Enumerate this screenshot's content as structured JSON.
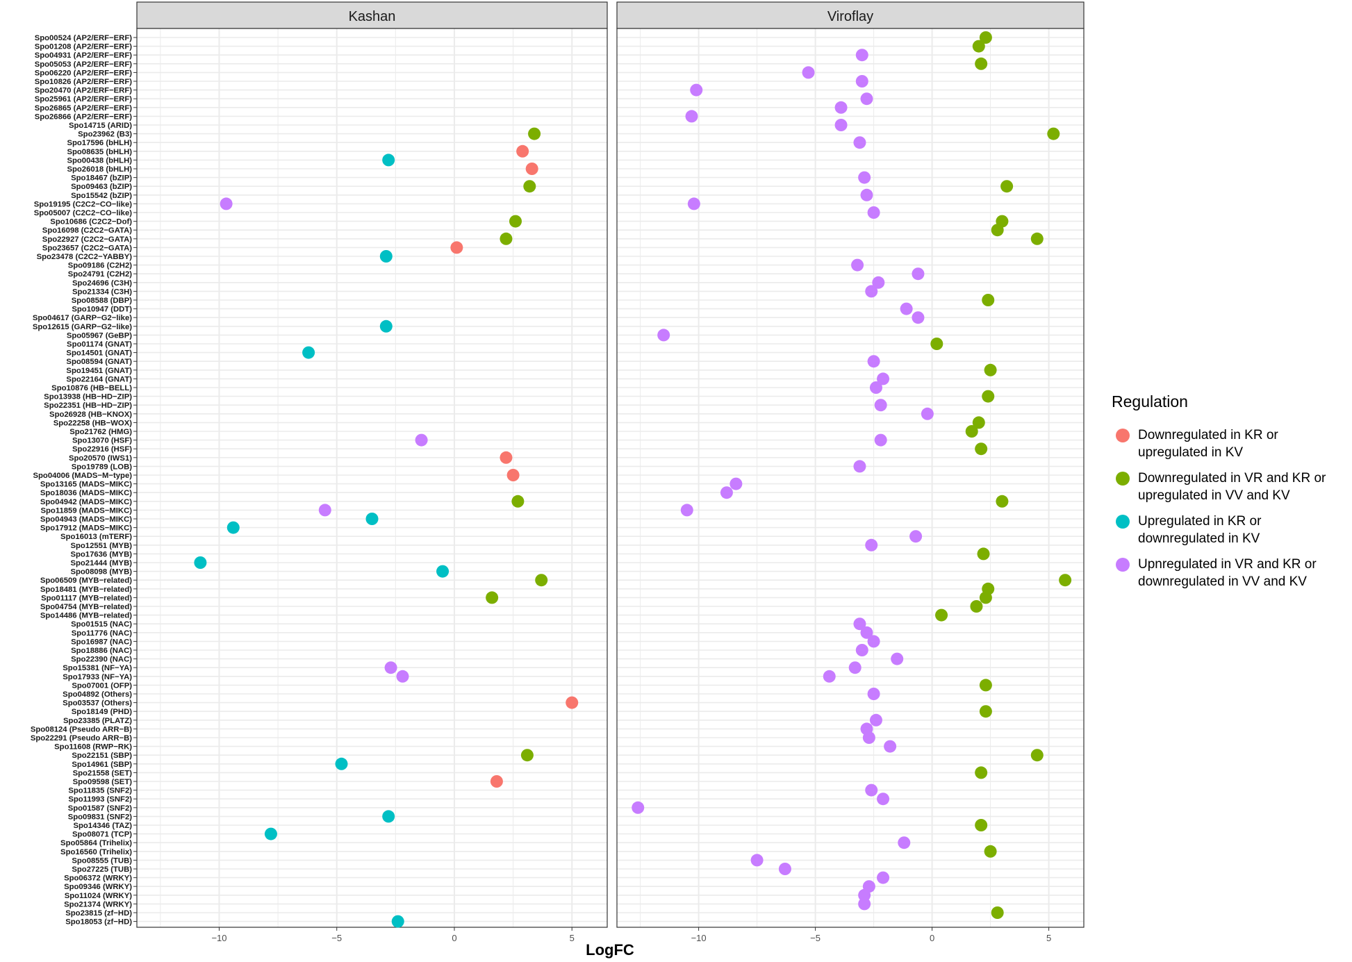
{
  "chart_data": {
    "type": "scatter",
    "xlabel": "LogFC",
    "ylabel": "",
    "xlim": [
      -13.5,
      6.5
    ],
    "xticks": [
      -10,
      -5,
      0,
      5
    ],
    "grid": true,
    "legend_placement": "right",
    "panels": [
      "Kashan",
      "Viroflay"
    ],
    "categories": [
      "Spo00524 (AP2/ERF−ERF)",
      "Spo01208 (AP2/ERF−ERF)",
      "Spo04931 (AP2/ERF−ERF)",
      "Spo05053 (AP2/ERF−ERF)",
      "Spo06220 (AP2/ERF−ERF)",
      "Spo10826 (AP2/ERF−ERF)",
      "Spo20470 (AP2/ERF−ERF)",
      "Spo25961 (AP2/ERF−ERF)",
      "Spo26865 (AP2/ERF−ERF)",
      "Spo26866 (AP2/ERF−ERF)",
      "Spo14715 (ARID)",
      "Spo23962 (B3)",
      "Spo17596 (bHLH)",
      "Spo08635 (bHLH)",
      "Spo00438 (bHLH)",
      "Spo26018 (bHLH)",
      "Spo18467 (bZIP)",
      "Spo09463 (bZIP)",
      "Spo15542 (bZIP)",
      "Spo19195 (C2C2−CO−like)",
      "Spo05007 (C2C2−CO−like)",
      "Spo10686 (C2C2−Dof)",
      "Spo16098 (C2C2−GATA)",
      "Spo22927 (C2C2−GATA)",
      "Spo23657 (C2C2−GATA)",
      "Spo23478 (C2C2−YABBY)",
      "Spo09186 (C2H2)",
      "Spo24791 (C2H2)",
      "Spo24696 (C3H)",
      "Spo21334 (C3H)",
      "Spo08588 (DBP)",
      "Spo10947 (DDT)",
      "Spo04617 (GARP−G2−like)",
      "Spo12615 (GARP−G2−like)",
      "Spo05967 (GeBP)",
      "Spo01174 (GNAT)",
      "Spo14501 (GNAT)",
      "Spo08594 (GNAT)",
      "Spo19451 (GNAT)",
      "Spo22164 (GNAT)",
      "Spo10876 (HB−BELL)",
      "Spo13938 (HB−HD−ZIP)",
      "Spo22351 (HB−HD−ZIP)",
      "Spo26928 (HB−KNOX)",
      "Spo22258 (HB−WOX)",
      "Spo21762 (HMG)",
      "Spo13070 (HSF)",
      "Spo22916 (HSF)",
      "Spo20570 (IWS1)",
      "Spo19789 (LOB)",
      "Spo04006 (MADS−M−type)",
      "Spo13165 (MADS−MIKC)",
      "Spo18036 (MADS−MIKC)",
      "Spo04942 (MADS−MIKC)",
      "Spo11859 (MADS−MIKC)",
      "Spo04943 (MADS−MIKC)",
      "Spo17912 (MADS−MIKC)",
      "Spo16013 (mTERF)",
      "Spo12551 (MYB)",
      "Spo17636 (MYB)",
      "Spo21444 (MYB)",
      "Spo08098 (MYB)",
      "Spo06509 (MYB−related)",
      "Spo18481 (MYB−related)",
      "Spo01117 (MYB−related)",
      "Spo04754 (MYB−related)",
      "Spo14486 (MYB−related)",
      "Spo01515 (NAC)",
      "Spo11776 (NAC)",
      "Spo16987 (NAC)",
      "Spo18886 (NAC)",
      "Spo22390 (NAC)",
      "Spo15381 (NF−YA)",
      "Spo17933 (NF−YA)",
      "Spo07001 (OFP)",
      "Spo04892 (Others)",
      "Spo03537 (Others)",
      "Spo18149 (PHD)",
      "Spo23385 (PLATZ)",
      "Spo08124 (Pseudo ARR−B)",
      "Spo22291 (Pseudo ARR−B)",
      "Spo11608 (RWP−RK)",
      "Spo22151 (SBP)",
      "Spo14961 (SBP)",
      "Spo21558 (SET)",
      "Spo09598 (SET)",
      "Spo11835 (SNF2)",
      "Spo11993 (SNF2)",
      "Spo01587 (SNF2)",
      "Spo09831 (SNF2)",
      "Spo14346 (TAZ)",
      "Spo08071 (TCP)",
      "Spo05864 (Trihelix)",
      "Spo16560 (Trihelix)",
      "Spo08555 (TUB)",
      "Spo27225 (TUB)",
      "Spo06372 (WRKY)",
      "Spo09346 (WRKY)",
      "Spo11024 (WRKY)",
      "Spo21374 (WRKY)",
      "Spo23815 (zf−HD)",
      "Spo18053 (zf−HD)"
    ],
    "series": [
      {
        "name": "Downregulated in KR or upregulated in KV",
        "color": "#F8766D"
      },
      {
        "name": "Downregulated in VR and KR or upregulated in VV and KV",
        "color": "#7CAE00"
      },
      {
        "name": "Upregulated in KR or downregulated in KV",
        "color": "#00BFC4"
      },
      {
        "name": "Upnregulated in VR and KR or downregulated in VV and KV",
        "color": "#C77CFF"
      }
    ],
    "points": [
      {
        "panel": 0,
        "row": 11,
        "x": 3.4,
        "s": 1
      },
      {
        "panel": 0,
        "row": 13,
        "x": 2.9,
        "s": 0
      },
      {
        "panel": 0,
        "row": 14,
        "x": -2.8,
        "s": 2
      },
      {
        "panel": 0,
        "row": 15,
        "x": 3.3,
        "s": 0
      },
      {
        "panel": 0,
        "row": 17,
        "x": 3.2,
        "s": 1
      },
      {
        "panel": 0,
        "row": 19,
        "x": -9.7,
        "s": 3
      },
      {
        "panel": 0,
        "row": 21,
        "x": 2.6,
        "s": 1
      },
      {
        "panel": 0,
        "row": 23,
        "x": 2.2,
        "s": 1
      },
      {
        "panel": 0,
        "row": 24,
        "x": 0.1,
        "s": 0
      },
      {
        "panel": 0,
        "row": 25,
        "x": -2.9,
        "s": 2
      },
      {
        "panel": 0,
        "row": 33,
        "x": -2.9,
        "s": 2
      },
      {
        "panel": 0,
        "row": 36,
        "x": -6.2,
        "s": 2
      },
      {
        "panel": 0,
        "row": 46,
        "x": -1.4,
        "s": 3
      },
      {
        "panel": 0,
        "row": 48,
        "x": 2.2,
        "s": 0
      },
      {
        "panel": 0,
        "row": 50,
        "x": 2.5,
        "s": 0
      },
      {
        "panel": 0,
        "row": 53,
        "x": 2.7,
        "s": 1
      },
      {
        "panel": 0,
        "row": 54,
        "x": -5.5,
        "s": 3
      },
      {
        "panel": 0,
        "row": 55,
        "x": -3.5,
        "s": 2
      },
      {
        "panel": 0,
        "row": 56,
        "x": -9.4,
        "s": 2
      },
      {
        "panel": 0,
        "row": 60,
        "x": -10.8,
        "s": 2
      },
      {
        "panel": 0,
        "row": 61,
        "x": -0.5,
        "s": 2
      },
      {
        "panel": 0,
        "row": 62,
        "x": 3.7,
        "s": 1
      },
      {
        "panel": 0,
        "row": 64,
        "x": 1.6,
        "s": 1
      },
      {
        "panel": 0,
        "row": 72,
        "x": -2.7,
        "s": 3
      },
      {
        "panel": 0,
        "row": 73,
        "x": -2.2,
        "s": 3
      },
      {
        "panel": 0,
        "row": 76,
        "x": 5.0,
        "s": 0
      },
      {
        "panel": 0,
        "row": 82,
        "x": 3.1,
        "s": 1
      },
      {
        "panel": 0,
        "row": 83,
        "x": -4.8,
        "s": 2
      },
      {
        "panel": 0,
        "row": 85,
        "x": 1.8,
        "s": 0
      },
      {
        "panel": 0,
        "row": 89,
        "x": -2.8,
        "s": 2
      },
      {
        "panel": 0,
        "row": 91,
        "x": -7.8,
        "s": 2
      },
      {
        "panel": 0,
        "row": 101,
        "x": -2.4,
        "s": 2
      },
      {
        "panel": 1,
        "row": 0,
        "x": 2.3,
        "s": 1
      },
      {
        "panel": 1,
        "row": 1,
        "x": 2.0,
        "s": 1
      },
      {
        "panel": 1,
        "row": 2,
        "x": -3.0,
        "s": 3
      },
      {
        "panel": 1,
        "row": 3,
        "x": 2.1,
        "s": 1
      },
      {
        "panel": 1,
        "row": 4,
        "x": -5.3,
        "s": 3
      },
      {
        "panel": 1,
        "row": 5,
        "x": -3.0,
        "s": 3
      },
      {
        "panel": 1,
        "row": 6,
        "x": -10.1,
        "s": 3
      },
      {
        "panel": 1,
        "row": 7,
        "x": -2.8,
        "s": 3
      },
      {
        "panel": 1,
        "row": 8,
        "x": -3.9,
        "s": 3
      },
      {
        "panel": 1,
        "row": 9,
        "x": -10.3,
        "s": 3
      },
      {
        "panel": 1,
        "row": 10,
        "x": -3.9,
        "s": 3
      },
      {
        "panel": 1,
        "row": 11,
        "x": 5.2,
        "s": 1
      },
      {
        "panel": 1,
        "row": 12,
        "x": -3.1,
        "s": 3
      },
      {
        "panel": 1,
        "row": 16,
        "x": -2.9,
        "s": 3
      },
      {
        "panel": 1,
        "row": 17,
        "x": 3.2,
        "s": 1
      },
      {
        "panel": 1,
        "row": 18,
        "x": -2.8,
        "s": 3
      },
      {
        "panel": 1,
        "row": 19,
        "x": -10.2,
        "s": 3
      },
      {
        "panel": 1,
        "row": 20,
        "x": -2.5,
        "s": 3
      },
      {
        "panel": 1,
        "row": 21,
        "x": 3.0,
        "s": 1
      },
      {
        "panel": 1,
        "row": 22,
        "x": 2.8,
        "s": 1
      },
      {
        "panel": 1,
        "row": 23,
        "x": 4.5,
        "s": 1
      },
      {
        "panel": 1,
        "row": 26,
        "x": -3.2,
        "s": 3
      },
      {
        "panel": 1,
        "row": 27,
        "x": -0.6,
        "s": 3
      },
      {
        "panel": 1,
        "row": 28,
        "x": -2.3,
        "s": 3
      },
      {
        "panel": 1,
        "row": 29,
        "x": -2.6,
        "s": 3
      },
      {
        "panel": 1,
        "row": 30,
        "x": 2.4,
        "s": 1
      },
      {
        "panel": 1,
        "row": 31,
        "x": -1.1,
        "s": 3
      },
      {
        "panel": 1,
        "row": 32,
        "x": -0.6,
        "s": 3
      },
      {
        "panel": 1,
        "row": 34,
        "x": -11.5,
        "s": 3
      },
      {
        "panel": 1,
        "row": 35,
        "x": 0.2,
        "s": 1
      },
      {
        "panel": 1,
        "row": 37,
        "x": -2.5,
        "s": 3
      },
      {
        "panel": 1,
        "row": 38,
        "x": 2.5,
        "s": 1
      },
      {
        "panel": 1,
        "row": 39,
        "x": -2.1,
        "s": 3
      },
      {
        "panel": 1,
        "row": 40,
        "x": -2.4,
        "s": 3
      },
      {
        "panel": 1,
        "row": 41,
        "x": 2.4,
        "s": 1
      },
      {
        "panel": 1,
        "row": 42,
        "x": -2.2,
        "s": 3
      },
      {
        "panel": 1,
        "row": 43,
        "x": -0.2,
        "s": 3
      },
      {
        "panel": 1,
        "row": 44,
        "x": 2.0,
        "s": 1
      },
      {
        "panel": 1,
        "row": 45,
        "x": 1.7,
        "s": 1
      },
      {
        "panel": 1,
        "row": 46,
        "x": -2.2,
        "s": 3
      },
      {
        "panel": 1,
        "row": 47,
        "x": 2.1,
        "s": 1
      },
      {
        "panel": 1,
        "row": 49,
        "x": -3.1,
        "s": 3
      },
      {
        "panel": 1,
        "row": 51,
        "x": -8.4,
        "s": 3
      },
      {
        "panel": 1,
        "row": 52,
        "x": -8.8,
        "s": 3
      },
      {
        "panel": 1,
        "row": 53,
        "x": 3.0,
        "s": 1
      },
      {
        "panel": 1,
        "row": 54,
        "x": -10.5,
        "s": 3
      },
      {
        "panel": 1,
        "row": 57,
        "x": -0.7,
        "s": 3
      },
      {
        "panel": 1,
        "row": 58,
        "x": -2.6,
        "s": 3
      },
      {
        "panel": 1,
        "row": 59,
        "x": 2.2,
        "s": 1
      },
      {
        "panel": 1,
        "row": 62,
        "x": 5.7,
        "s": 1
      },
      {
        "panel": 1,
        "row": 63,
        "x": 2.4,
        "s": 1
      },
      {
        "panel": 1,
        "row": 64,
        "x": 2.3,
        "s": 1
      },
      {
        "panel": 1,
        "row": 65,
        "x": 1.9,
        "s": 1
      },
      {
        "panel": 1,
        "row": 66,
        "x": 0.4,
        "s": 1
      },
      {
        "panel": 1,
        "row": 67,
        "x": -3.1,
        "s": 3
      },
      {
        "panel": 1,
        "row": 68,
        "x": -2.8,
        "s": 3
      },
      {
        "panel": 1,
        "row": 69,
        "x": -2.5,
        "s": 3
      },
      {
        "panel": 1,
        "row": 70,
        "x": -3.0,
        "s": 3
      },
      {
        "panel": 1,
        "row": 71,
        "x": -1.5,
        "s": 3
      },
      {
        "panel": 1,
        "row": 72,
        "x": -3.3,
        "s": 3
      },
      {
        "panel": 1,
        "row": 73,
        "x": -4.4,
        "s": 3
      },
      {
        "panel": 1,
        "row": 74,
        "x": 2.3,
        "s": 1
      },
      {
        "panel": 1,
        "row": 75,
        "x": -2.5,
        "s": 3
      },
      {
        "panel": 1,
        "row": 77,
        "x": 2.3,
        "s": 1
      },
      {
        "panel": 1,
        "row": 78,
        "x": -2.4,
        "s": 3
      },
      {
        "panel": 1,
        "row": 79,
        "x": -2.8,
        "s": 3
      },
      {
        "panel": 1,
        "row": 80,
        "x": -2.7,
        "s": 3
      },
      {
        "panel": 1,
        "row": 81,
        "x": -1.8,
        "s": 3
      },
      {
        "panel": 1,
        "row": 82,
        "x": 4.5,
        "s": 1
      },
      {
        "panel": 1,
        "row": 84,
        "x": 2.1,
        "s": 1
      },
      {
        "panel": 1,
        "row": 86,
        "x": -2.6,
        "s": 3
      },
      {
        "panel": 1,
        "row": 87,
        "x": -2.1,
        "s": 3
      },
      {
        "panel": 1,
        "row": 88,
        "x": -12.6,
        "s": 3
      },
      {
        "panel": 1,
        "row": 90,
        "x": 2.1,
        "s": 1
      },
      {
        "panel": 1,
        "row": 92,
        "x": -1.2,
        "s": 3
      },
      {
        "panel": 1,
        "row": 93,
        "x": 2.5,
        "s": 1
      },
      {
        "panel": 1,
        "row": 94,
        "x": -7.5,
        "s": 3
      },
      {
        "panel": 1,
        "row": 95,
        "x": -6.3,
        "s": 3
      },
      {
        "panel": 1,
        "row": 96,
        "x": -2.1,
        "s": 3
      },
      {
        "panel": 1,
        "row": 97,
        "x": -2.7,
        "s": 3
      },
      {
        "panel": 1,
        "row": 98,
        "x": -2.9,
        "s": 3
      },
      {
        "panel": 1,
        "row": 99,
        "x": -2.9,
        "s": 3
      },
      {
        "panel": 1,
        "row": 100,
        "x": 2.8,
        "s": 1
      }
    ]
  },
  "legend": {
    "title": "Regulation",
    "items": [
      {
        "line1": "Downregulated in KR or",
        "line2": "upregulated in KV",
        "color": "#F8766D"
      },
      {
        "line1": "Downregulated in VR and KR or",
        "line2": "upregulated in VV and KV",
        "color": "#7CAE00"
      },
      {
        "line1": "Upregulated in KR or",
        "line2": "downregulated in KV",
        "color": "#00BFC4"
      },
      {
        "line1": "Upnregulated in VR and KR or",
        "line2": "downregulated in VV and KV",
        "color": "#C77CFF"
      }
    ]
  }
}
